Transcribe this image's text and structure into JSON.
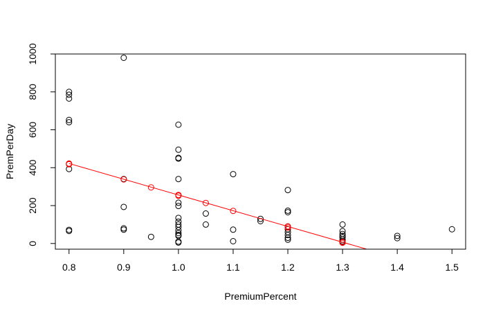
{
  "chart_data": {
    "type": "scatter",
    "xlabel": "PremiumPercent",
    "ylabel": "PremPerDay",
    "xlim": [
      0.775,
      1.525
    ],
    "ylim": [
      -30,
      1000
    ],
    "x_ticks": [
      {
        "value": 0.8,
        "label": "0.8"
      },
      {
        "value": 0.9,
        "label": "0.9"
      },
      {
        "value": 1.0,
        "label": "1.0"
      },
      {
        "value": 1.1,
        "label": "1.1"
      },
      {
        "value": 1.2,
        "label": "1.2"
      },
      {
        "value": 1.3,
        "label": "1.3"
      },
      {
        "value": 1.4,
        "label": "1.4"
      },
      {
        "value": 1.5,
        "label": "1.5"
      }
    ],
    "y_ticks": [
      {
        "value": 0,
        "label": "0"
      },
      {
        "value": 200,
        "label": "200"
      },
      {
        "value": 400,
        "label": "400"
      },
      {
        "value": 600,
        "label": "600"
      },
      {
        "value": 800,
        "label": "800"
      },
      {
        "value": 1000,
        "label": "1000"
      }
    ],
    "grid": false,
    "series": [
      {
        "color": "#000000",
        "marker": "open-circle",
        "points": [
          [
            0.8,
            800
          ],
          [
            0.8,
            785
          ],
          [
            0.8,
            765
          ],
          [
            0.8,
            652
          ],
          [
            0.8,
            640
          ],
          [
            0.8,
            420
          ],
          [
            0.8,
            393
          ],
          [
            0.8,
            72
          ],
          [
            0.8,
            66
          ],
          [
            0.9,
            980
          ],
          [
            0.9,
            340
          ],
          [
            0.9,
            193
          ],
          [
            0.9,
            80
          ],
          [
            0.9,
            73
          ],
          [
            0.95,
            35
          ],
          [
            1.0,
            627
          ],
          [
            1.0,
            495
          ],
          [
            1.0,
            452
          ],
          [
            1.0,
            448
          ],
          [
            1.0,
            340
          ],
          [
            1.0,
            255
          ],
          [
            1.0,
            215
          ],
          [
            1.0,
            198
          ],
          [
            1.0,
            135
          ],
          [
            1.0,
            115
          ],
          [
            1.0,
            100
          ],
          [
            1.0,
            87
          ],
          [
            1.0,
            70
          ],
          [
            1.0,
            55
          ],
          [
            1.0,
            45
          ],
          [
            1.0,
            40
          ],
          [
            1.0,
            10
          ],
          [
            1.0,
            5
          ],
          [
            1.05,
            158
          ],
          [
            1.05,
            100
          ],
          [
            1.1,
            366
          ],
          [
            1.1,
            73
          ],
          [
            1.1,
            12
          ],
          [
            1.15,
            130
          ],
          [
            1.15,
            118
          ],
          [
            1.2,
            282
          ],
          [
            1.2,
            173
          ],
          [
            1.2,
            165
          ],
          [
            1.2,
            90
          ],
          [
            1.2,
            75
          ],
          [
            1.2,
            60
          ],
          [
            1.2,
            45
          ],
          [
            1.2,
            30
          ],
          [
            1.2,
            20
          ],
          [
            1.3,
            100
          ],
          [
            1.3,
            65
          ],
          [
            1.3,
            50
          ],
          [
            1.3,
            40
          ],
          [
            1.3,
            32
          ],
          [
            1.3,
            20
          ],
          [
            1.3,
            12
          ],
          [
            1.3,
            5
          ],
          [
            1.4,
            40
          ],
          [
            1.4,
            28
          ],
          [
            1.5,
            75
          ]
        ]
      },
      {
        "color": "#ff0000",
        "marker": "open-circle",
        "points": [
          [
            0.8,
            422
          ],
          [
            0.8,
            418
          ],
          [
            0.9,
            338
          ],
          [
            0.95,
            296
          ],
          [
            1.0,
            256
          ],
          [
            1.0,
            252
          ],
          [
            1.05,
            214
          ],
          [
            1.1,
            172
          ],
          [
            1.2,
            90
          ],
          [
            1.2,
            84
          ],
          [
            1.3,
            8
          ],
          [
            1.3,
            4
          ]
        ]
      }
    ],
    "fit_line": {
      "color": "#ff0000",
      "intercept": 1087,
      "slope": -831,
      "x_range": [
        0.8,
        1.525
      ]
    }
  }
}
